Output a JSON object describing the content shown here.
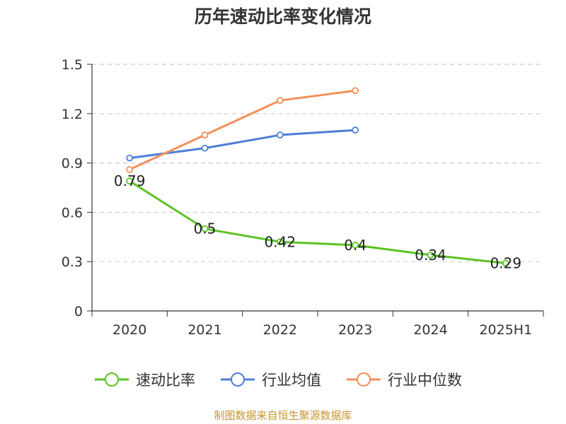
{
  "chart_data": {
    "type": "line",
    "title": "历年速动比率变化情况",
    "categories": [
      "2020",
      "2021",
      "2022",
      "2023",
      "2024",
      "2025H1"
    ],
    "ylim": [
      0,
      1.5
    ],
    "yticks": [
      "0",
      "0.3",
      "0.6",
      "0.9",
      "1.2",
      "1.5"
    ],
    "grid": true,
    "legend_position": "bottom",
    "series": [
      {
        "name": "速动比率",
        "color": "#5cc323",
        "values": [
          0.79,
          0.5,
          0.42,
          0.4,
          0.34,
          0.29
        ],
        "labels": [
          "0.79",
          "0.5",
          "0.42",
          "0.4",
          "0.34",
          "0.29"
        ]
      },
      {
        "name": "行业均值",
        "color": "#4e7ed6",
        "values": [
          0.93,
          0.99,
          1.07,
          1.1,
          null,
          null
        ]
      },
      {
        "name": "行业中位数",
        "color": "#f4905a",
        "values": [
          0.86,
          1.07,
          1.28,
          1.34,
          null,
          null
        ]
      }
    ]
  },
  "source": "制图数据来自恒生聚源数据库"
}
